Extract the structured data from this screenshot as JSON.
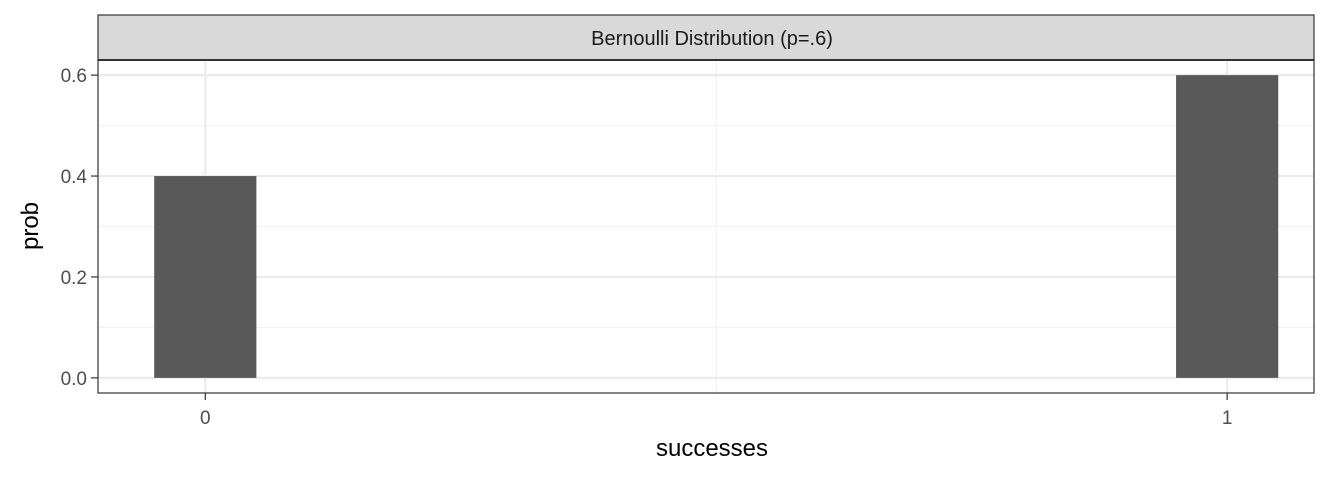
{
  "chart_data": {
    "type": "bar",
    "facet_title": "Bernoulli Distribution (p=.6)",
    "categories": [
      "0",
      "1"
    ],
    "x": [
      0,
      1
    ],
    "values": [
      0.4,
      0.6
    ],
    "xlabel": "successes",
    "ylabel": "prob",
    "xlim": [
      -0.105,
      1.085
    ],
    "ylim": [
      -0.03,
      0.63
    ],
    "yticks": [
      0.0,
      0.2,
      0.4,
      0.6
    ],
    "ytick_labels": [
      "0.0",
      "0.2",
      "0.4",
      "0.6"
    ],
    "xticks": [
      0,
      1
    ],
    "xtick_labels": [
      "0",
      "1"
    ],
    "bar_width": 0.1,
    "grid": true,
    "legend": "none"
  },
  "colors": {
    "bar": "#595959",
    "grid_major": "#ebebeb",
    "grid_minor": "#f3f3f3",
    "panel_border": "#333333",
    "strip_fill": "#d9d9d9",
    "axis_text": "#4d4d4d"
  }
}
